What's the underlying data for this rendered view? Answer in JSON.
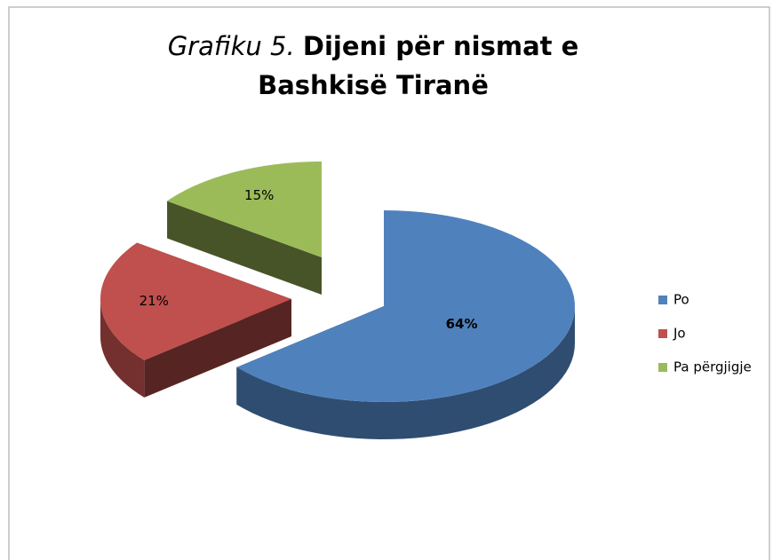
{
  "chart_data": {
    "type": "pie3d",
    "title_number": "Grafiku 5.",
    "title": "Dijeni për nismat e Bashkisë Tiranë",
    "categories": [
      "Po",
      "Jo",
      "Pa përgjigje"
    ],
    "values": [
      64,
      21,
      15
    ],
    "value_labels": [
      "64%",
      "21%",
      "15%"
    ],
    "colors": [
      "#4f81bd",
      "#c0504d",
      "#9bbb59"
    ],
    "legend": "right"
  }
}
